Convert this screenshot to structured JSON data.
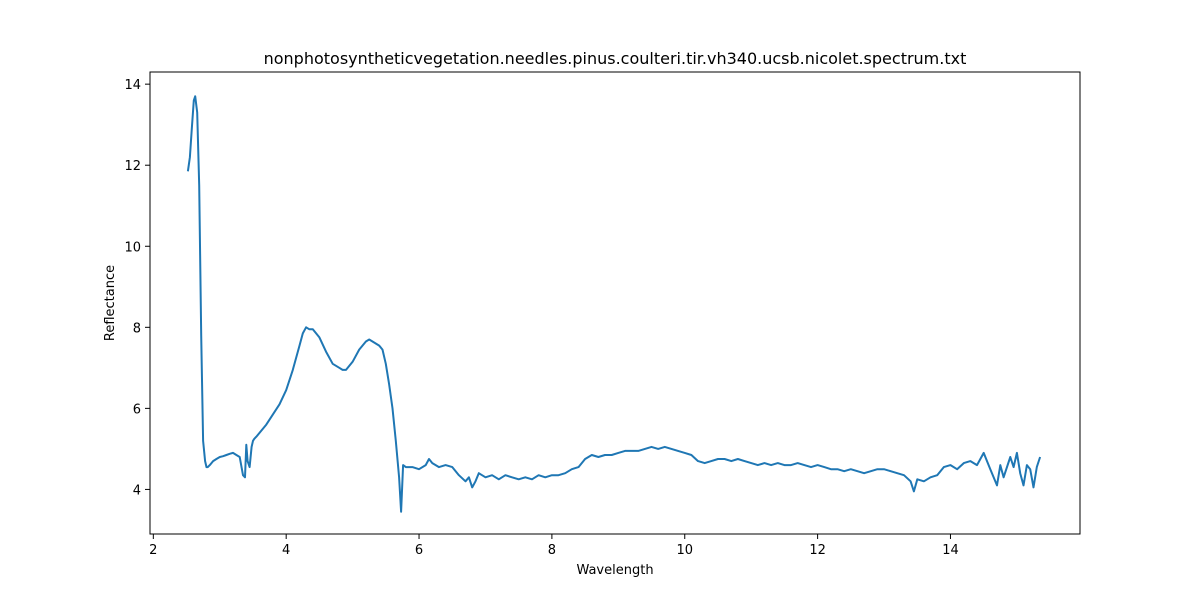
{
  "chart_data": {
    "type": "line",
    "title": "nonphotosyntheticvegetation.needles.pinus.coulteri.tir.vh340.ucsb.nicolet.spectrum.txt",
    "xlabel": "Wavelength",
    "ylabel": "Reflectance",
    "xlim": [
      1.95,
      15.95
    ],
    "ylim": [
      2.9,
      14.3
    ],
    "xticks": [
      2,
      4,
      6,
      8,
      10,
      12,
      14
    ],
    "yticks": [
      4,
      6,
      8,
      10,
      12,
      14
    ],
    "grid": false,
    "line_color": "#1f77b4",
    "series": [
      {
        "x": [
          2.52,
          2.55,
          2.58,
          2.61,
          2.63,
          2.66,
          2.69,
          2.72,
          2.75,
          2.78,
          2.8,
          2.82,
          2.85,
          2.9,
          2.95,
          3.0,
          3.05,
          3.1,
          3.15,
          3.2,
          3.25,
          3.3,
          3.35,
          3.38,
          3.4,
          3.42,
          3.45,
          3.48,
          3.5,
          3.52,
          3.55,
          3.6,
          3.7,
          3.8,
          3.9,
          4.0,
          4.1,
          4.2,
          4.25,
          4.3,
          4.35,
          4.4,
          4.5,
          4.6,
          4.7,
          4.8,
          4.85,
          4.9,
          5.0,
          5.1,
          5.2,
          5.25,
          5.3,
          5.4,
          5.45,
          5.5,
          5.55,
          5.6,
          5.65,
          5.7,
          5.73,
          5.76,
          5.8,
          5.9,
          6.0,
          6.1,
          6.15,
          6.2,
          6.3,
          6.4,
          6.5,
          6.6,
          6.7,
          6.75,
          6.8,
          6.85,
          6.9,
          7.0,
          7.1,
          7.2,
          7.3,
          7.4,
          7.5,
          7.6,
          7.7,
          7.8,
          7.9,
          8.0,
          8.1,
          8.2,
          8.3,
          8.4,
          8.5,
          8.6,
          8.7,
          8.8,
          8.9,
          9.0,
          9.1,
          9.2,
          9.3,
          9.4,
          9.5,
          9.6,
          9.7,
          9.8,
          9.9,
          10.0,
          10.1,
          10.2,
          10.3,
          10.4,
          10.5,
          10.6,
          10.7,
          10.8,
          10.9,
          11.0,
          11.1,
          11.2,
          11.3,
          11.4,
          11.5,
          11.6,
          11.7,
          11.8,
          11.9,
          12.0,
          12.1,
          12.2,
          12.3,
          12.4,
          12.5,
          12.6,
          12.7,
          12.8,
          12.9,
          13.0,
          13.1,
          13.2,
          13.3,
          13.4,
          13.45,
          13.5,
          13.6,
          13.7,
          13.8,
          13.9,
          14.0,
          14.1,
          14.2,
          14.3,
          14.4,
          14.5,
          14.55,
          14.6,
          14.7,
          14.75,
          14.8,
          14.9,
          14.95,
          15.0,
          15.05,
          15.1,
          15.15,
          15.2,
          15.25,
          15.3,
          15.35
        ],
        "y": [
          11.85,
          12.2,
          12.9,
          13.6,
          13.7,
          13.3,
          11.5,
          7.8,
          5.2,
          4.7,
          4.55,
          4.55,
          4.6,
          4.7,
          4.75,
          4.8,
          4.82,
          4.85,
          4.88,
          4.9,
          4.85,
          4.8,
          4.35,
          4.3,
          5.1,
          4.7,
          4.55,
          5.05,
          5.2,
          5.25,
          5.3,
          5.4,
          5.6,
          5.85,
          6.1,
          6.45,
          6.95,
          7.55,
          7.85,
          8.0,
          7.95,
          7.95,
          7.75,
          7.4,
          7.1,
          7.0,
          6.95,
          6.95,
          7.15,
          7.45,
          7.65,
          7.7,
          7.65,
          7.55,
          7.45,
          7.1,
          6.6,
          6.0,
          5.2,
          4.3,
          3.45,
          4.6,
          4.55,
          4.55,
          4.5,
          4.6,
          4.75,
          4.65,
          4.55,
          4.6,
          4.55,
          4.35,
          4.2,
          4.3,
          4.05,
          4.2,
          4.4,
          4.3,
          4.35,
          4.25,
          4.35,
          4.3,
          4.25,
          4.3,
          4.25,
          4.35,
          4.3,
          4.35,
          4.35,
          4.4,
          4.5,
          4.55,
          4.75,
          4.85,
          4.8,
          4.85,
          4.85,
          4.9,
          4.95,
          4.95,
          4.95,
          5.0,
          5.05,
          5.0,
          5.05,
          5.0,
          4.95,
          4.9,
          4.85,
          4.7,
          4.65,
          4.7,
          4.75,
          4.75,
          4.7,
          4.75,
          4.7,
          4.65,
          4.6,
          4.65,
          4.6,
          4.65,
          4.6,
          4.6,
          4.65,
          4.6,
          4.55,
          4.6,
          4.55,
          4.5,
          4.5,
          4.45,
          4.5,
          4.45,
          4.4,
          4.45,
          4.5,
          4.5,
          4.45,
          4.4,
          4.35,
          4.2,
          3.95,
          4.25,
          4.2,
          4.3,
          4.35,
          4.55,
          4.6,
          4.5,
          4.65,
          4.7,
          4.6,
          4.9,
          4.7,
          4.5,
          4.1,
          4.6,
          4.3,
          4.8,
          4.55,
          4.9,
          4.4,
          4.1,
          4.6,
          4.5,
          4.05,
          4.55,
          4.8
        ]
      }
    ]
  }
}
